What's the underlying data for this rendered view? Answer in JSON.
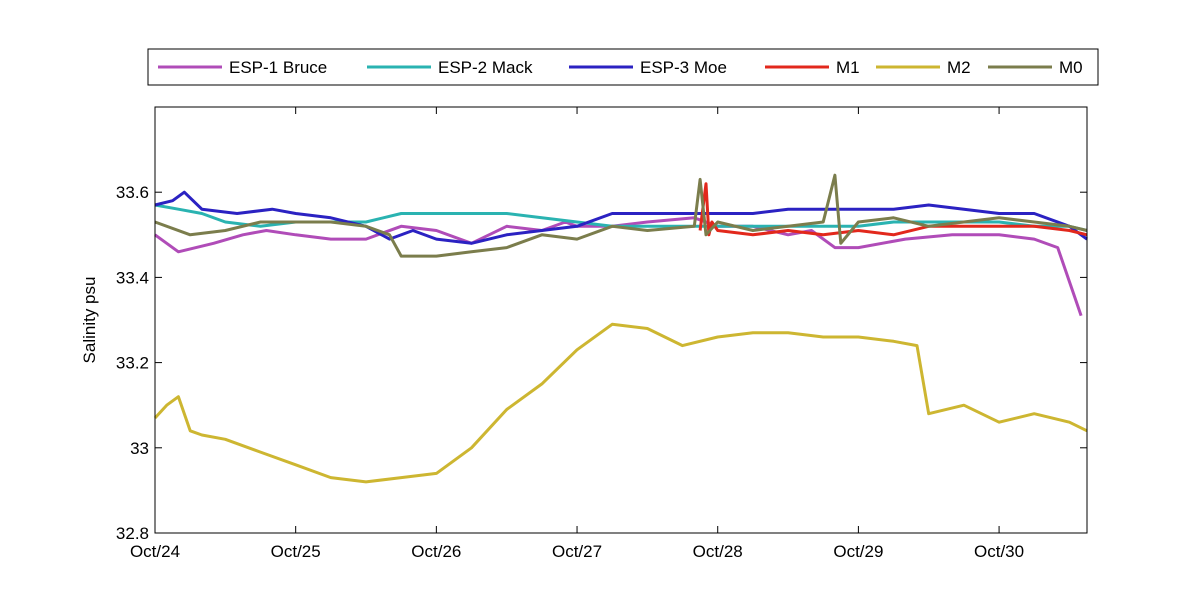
{
  "chart_data": {
    "type": "line",
    "ylabel": "Salinity psu",
    "ylim": [
      32.8,
      33.8
    ],
    "yticks": [
      32.8,
      33.0,
      33.2,
      33.4,
      33.6
    ],
    "ytick_labels": [
      "32.8",
      "33",
      "33.2",
      "33.4",
      "33.6"
    ],
    "xlim": [
      "2014-10-24",
      "2014-10-30T15:00"
    ],
    "xticks": [
      "2014-10-24",
      "2014-10-25",
      "2014-10-26",
      "2014-10-27",
      "2014-10-28",
      "2014-10-29",
      "2014-10-30"
    ],
    "xtick_labels": [
      "Oct/24",
      "Oct/25",
      "Oct/26",
      "Oct/27",
      "Oct/28",
      "Oct/29",
      "Oct/30"
    ],
    "grid": false,
    "legend_position": "top",
    "series": [
      {
        "name": "ESP-1 Bruce",
        "color": "#b04cb8",
        "x": [
          "2014-10-24T00:00",
          "2014-10-24T02:00",
          "2014-10-24T04:00",
          "2014-10-24T07:00",
          "2014-10-24T10:00",
          "2014-10-24T15:00",
          "2014-10-24T19:00",
          "2014-10-25T00:00",
          "2014-10-25T06:00",
          "2014-10-25T12:00",
          "2014-10-25T18:00",
          "2014-10-26T00:00",
          "2014-10-26T06:00",
          "2014-10-26T12:00",
          "2014-10-26T18:00",
          "2014-10-26T22:00",
          "2014-10-27T00:00",
          "2014-10-27T06:00",
          "2014-10-27T12:00",
          "2014-10-27T20:00",
          "2014-10-28T00:00",
          "2014-10-28T06:00",
          "2014-10-28T12:00",
          "2014-10-28T16:00",
          "2014-10-28T20:00",
          "2014-10-29T00:00",
          "2014-10-29T08:00",
          "2014-10-29T16:00",
          "2014-10-30T00:00",
          "2014-10-30T06:00",
          "2014-10-30T10:00",
          "2014-10-30T13:00",
          "2014-10-30T14:00"
        ],
        "y": [
          33.5,
          33.48,
          33.46,
          33.47,
          33.48,
          33.5,
          33.51,
          33.5,
          33.49,
          33.49,
          33.52,
          33.51,
          33.48,
          33.52,
          33.51,
          33.53,
          33.52,
          33.52,
          33.53,
          33.54,
          33.52,
          33.52,
          33.5,
          33.51,
          33.47,
          33.47,
          33.49,
          33.5,
          33.5,
          33.49,
          33.47,
          33.35,
          33.31
        ]
      },
      {
        "name": "ESP-2 Mack",
        "color": "#2ab3b1",
        "x": [
          "2014-10-24T00:00",
          "2014-10-24T04:00",
          "2014-10-24T08:00",
          "2014-10-24T12:00",
          "2014-10-24T18:00",
          "2014-10-25T00:00",
          "2014-10-25T06:00",
          "2014-10-25T12:00",
          "2014-10-25T18:00",
          "2014-10-26T00:00",
          "2014-10-26T06:00",
          "2014-10-26T12:00",
          "2014-10-26T18:00",
          "2014-10-27T00:00",
          "2014-10-27T06:00",
          "2014-10-27T12:00",
          "2014-10-27T18:00",
          "2014-10-28T00:00",
          "2014-10-28T06:00",
          "2014-10-28T12:00",
          "2014-10-28T18:00",
          "2014-10-29T00:00",
          "2014-10-29T06:00",
          "2014-10-29T12:00",
          "2014-10-29T18:00",
          "2014-10-30T00:00",
          "2014-10-30T06:00",
          "2014-10-30T12:00",
          "2014-10-30T15:00"
        ],
        "y": [
          33.57,
          33.56,
          33.55,
          33.53,
          33.52,
          33.53,
          33.53,
          33.53,
          33.55,
          33.55,
          33.55,
          33.55,
          33.54,
          33.53,
          33.52,
          33.52,
          33.52,
          33.52,
          33.52,
          33.52,
          33.52,
          33.52,
          33.53,
          33.53,
          33.53,
          33.53,
          33.52,
          33.52,
          33.51
        ]
      },
      {
        "name": "ESP-3 Moe",
        "color": "#2b22c2",
        "x": [
          "2014-10-24T00:00",
          "2014-10-24T03:00",
          "2014-10-24T05:00",
          "2014-10-24T08:00",
          "2014-10-24T14:00",
          "2014-10-24T20:00",
          "2014-10-25T00:00",
          "2014-10-25T06:00",
          "2014-10-25T12:00",
          "2014-10-25T16:00",
          "2014-10-25T20:00",
          "2014-10-26T00:00",
          "2014-10-26T06:00",
          "2014-10-26T12:00",
          "2014-10-26T18:00",
          "2014-10-27T00:00",
          "2014-10-27T06:00",
          "2014-10-27T12:00",
          "2014-10-27T18:00",
          "2014-10-28T00:00",
          "2014-10-28T06:00",
          "2014-10-28T12:00",
          "2014-10-28T18:00",
          "2014-10-29T00:00",
          "2014-10-29T06:00",
          "2014-10-29T12:00",
          "2014-10-29T18:00",
          "2014-10-30T00:00",
          "2014-10-30T06:00",
          "2014-10-30T12:00",
          "2014-10-30T15:00"
        ],
        "y": [
          33.57,
          33.58,
          33.6,
          33.56,
          33.55,
          33.56,
          33.55,
          33.54,
          33.52,
          33.49,
          33.51,
          33.49,
          33.48,
          33.5,
          33.51,
          33.52,
          33.55,
          33.55,
          33.55,
          33.55,
          33.55,
          33.56,
          33.56,
          33.56,
          33.56,
          33.57,
          33.56,
          33.55,
          33.55,
          33.52,
          33.49
        ]
      },
      {
        "name": "M1",
        "color": "#e2281c",
        "x": [
          "2014-10-27T21:00",
          "2014-10-27T22:00",
          "2014-10-27T22:30",
          "2014-10-27T23:00",
          "2014-10-28T00:00",
          "2014-10-28T06:00",
          "2014-10-28T12:00",
          "2014-10-28T18:00",
          "2014-10-29T00:00",
          "2014-10-29T06:00",
          "2014-10-29T12:00",
          "2014-10-29T18:00",
          "2014-10-30T00:00",
          "2014-10-30T06:00",
          "2014-10-30T12:00",
          "2014-10-30T15:00"
        ],
        "y": [
          33.51,
          33.62,
          33.5,
          33.53,
          33.51,
          33.5,
          33.51,
          33.5,
          33.51,
          33.5,
          33.52,
          33.52,
          33.52,
          33.52,
          33.51,
          33.5
        ]
      },
      {
        "name": "M2",
        "color": "#cdb631",
        "x": [
          "2014-10-24T00:00",
          "2014-10-24T02:00",
          "2014-10-24T04:00",
          "2014-10-24T06:00",
          "2014-10-24T08:00",
          "2014-10-24T12:00",
          "2014-10-24T18:00",
          "2014-10-25T00:00",
          "2014-10-25T06:00",
          "2014-10-25T12:00",
          "2014-10-25T18:00",
          "2014-10-26T00:00",
          "2014-10-26T06:00",
          "2014-10-26T12:00",
          "2014-10-26T18:00",
          "2014-10-27T00:00",
          "2014-10-27T06:00",
          "2014-10-27T12:00",
          "2014-10-27T18:00",
          "2014-10-28T00:00",
          "2014-10-28T06:00",
          "2014-10-28T12:00",
          "2014-10-28T18:00",
          "2014-10-29T00:00",
          "2014-10-29T06:00",
          "2014-10-29T10:00",
          "2014-10-29T12:00",
          "2014-10-29T18:00",
          "2014-10-30T00:00",
          "2014-10-30T06:00",
          "2014-10-30T12:00",
          "2014-10-30T15:00"
        ],
        "y": [
          33.07,
          33.1,
          33.12,
          33.04,
          33.03,
          33.02,
          32.99,
          32.96,
          32.93,
          32.92,
          32.93,
          32.94,
          33.0,
          33.09,
          33.15,
          33.23,
          33.29,
          33.28,
          33.24,
          33.26,
          33.27,
          33.27,
          33.26,
          33.26,
          33.25,
          33.24,
          33.08,
          33.1,
          33.06,
          33.08,
          33.06,
          33.04
        ]
      },
      {
        "name": "M0",
        "color": "#7b7d4c",
        "x": [
          "2014-10-24T00:00",
          "2014-10-24T06:00",
          "2014-10-24T12:00",
          "2014-10-24T18:00",
          "2014-10-25T00:00",
          "2014-10-25T06:00",
          "2014-10-25T12:00",
          "2014-10-25T16:00",
          "2014-10-25T18:00",
          "2014-10-26T00:00",
          "2014-10-26T06:00",
          "2014-10-26T12:00",
          "2014-10-26T18:00",
          "2014-10-27T00:00",
          "2014-10-27T06:00",
          "2014-10-27T12:00",
          "2014-10-27T20:00",
          "2014-10-27T21:00",
          "2014-10-27T22:00",
          "2014-10-28T00:00",
          "2014-10-28T06:00",
          "2014-10-28T12:00",
          "2014-10-28T18:00",
          "2014-10-28T20:00",
          "2014-10-28T21:00",
          "2014-10-29T00:00",
          "2014-10-29T06:00",
          "2014-10-29T12:00",
          "2014-10-29T18:00",
          "2014-10-30T00:00",
          "2014-10-30T06:00",
          "2014-10-30T12:00",
          "2014-10-30T15:00"
        ],
        "y": [
          33.53,
          33.5,
          33.51,
          33.53,
          33.53,
          33.53,
          33.52,
          33.5,
          33.45,
          33.45,
          33.46,
          33.47,
          33.5,
          33.49,
          33.52,
          33.51,
          33.52,
          33.63,
          33.5,
          33.53,
          33.51,
          33.52,
          33.53,
          33.64,
          33.48,
          33.53,
          33.54,
          33.52,
          33.53,
          33.54,
          33.53,
          33.52,
          33.51
        ]
      }
    ]
  }
}
